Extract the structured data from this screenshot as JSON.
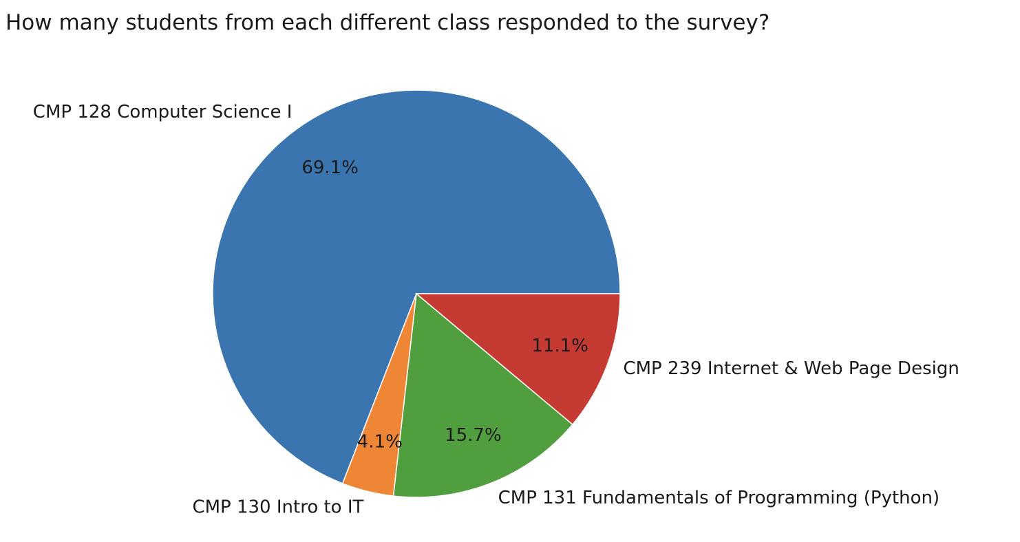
{
  "chart_data": {
    "type": "pie",
    "title": "How many students from each different class responded to the survey?",
    "categories": [
      "CMP 128 Computer Science I",
      "CMP 130 Intro to IT",
      "CMP 131 Fundamentals of Programming (Python)",
      "CMP 239 Internet & Web Page Design"
    ],
    "values": [
      69.1,
      4.1,
      15.7,
      11.1
    ],
    "percent_labels": [
      "69.1%",
      "4.1%",
      "15.7%",
      "11.1%"
    ],
    "colors": [
      "#3b75af",
      "#ef8636",
      "#519e3e",
      "#c53a32"
    ],
    "start_angle_deg": 0,
    "direction": "counterclockwise"
  }
}
